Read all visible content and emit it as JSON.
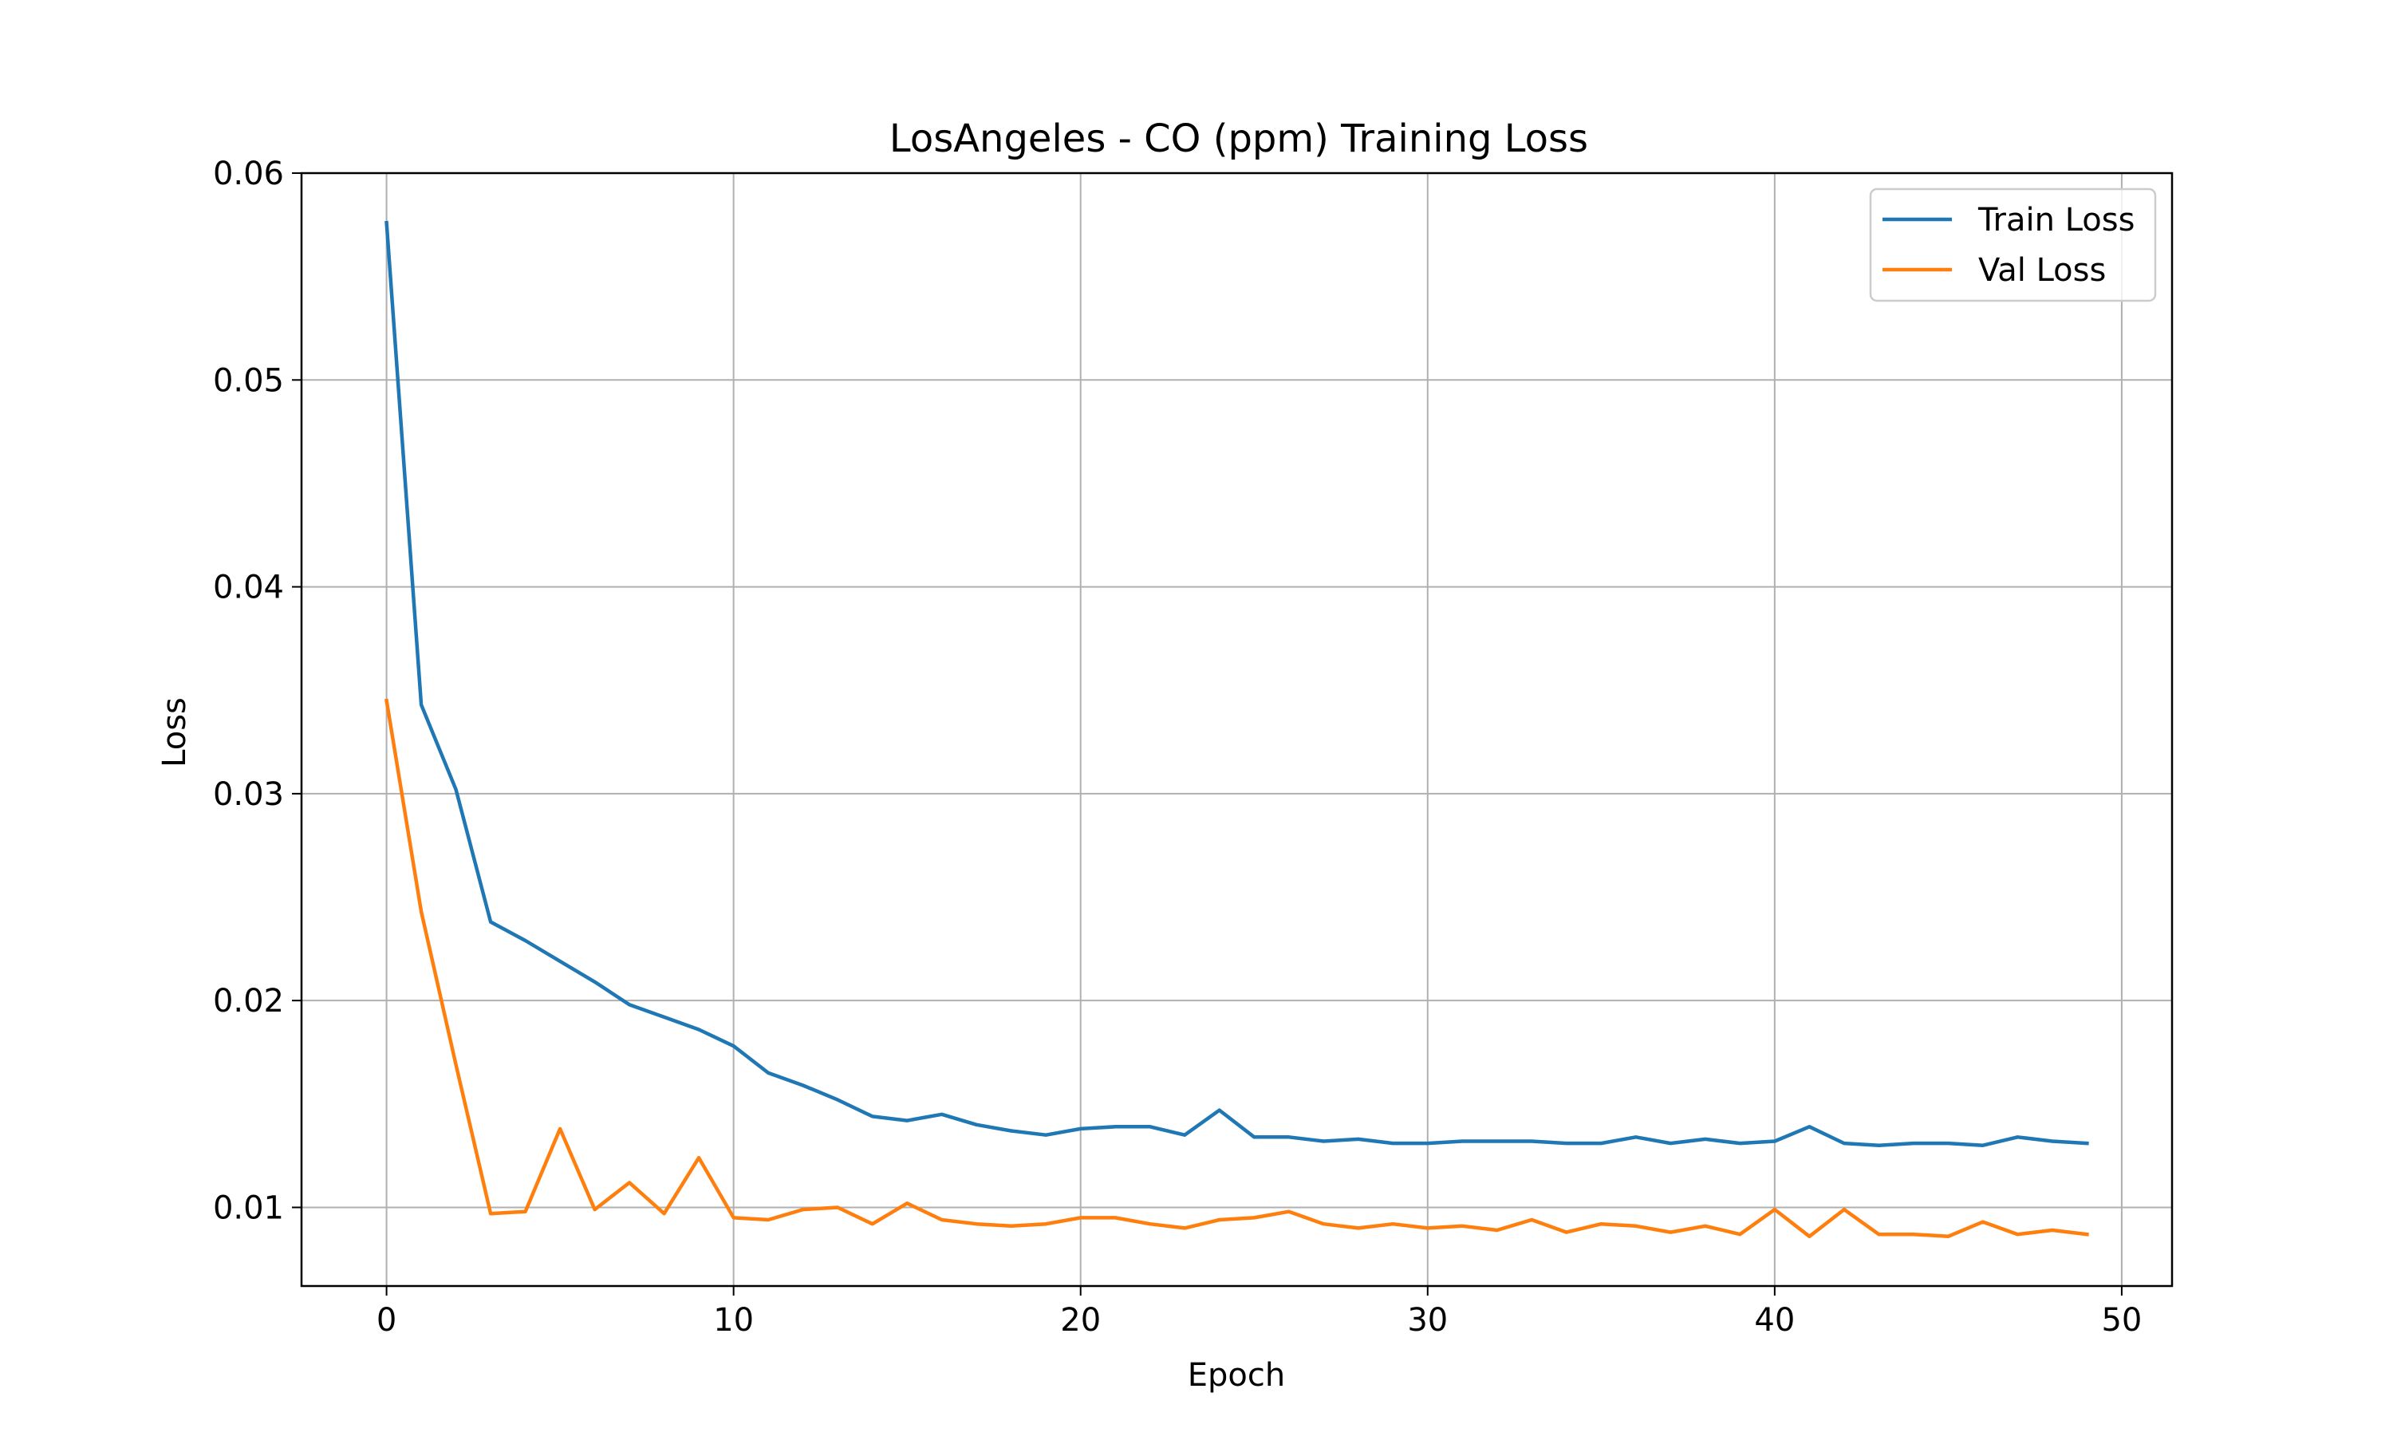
{
  "chart_data": {
    "type": "line",
    "title": "LosAngeles - CO (ppm) Training Loss",
    "xlabel": "Epoch",
    "ylabel": "Loss",
    "xlim": [
      -2.45,
      51.45
    ],
    "ylim": [
      0.0062,
      0.06
    ],
    "xticks": [
      0,
      10,
      20,
      30,
      40,
      50
    ],
    "xtick_labels": [
      "0",
      "10",
      "20",
      "30",
      "40",
      "50"
    ],
    "yticks": [
      0.01,
      0.02,
      0.03,
      0.04,
      0.05,
      0.06
    ],
    "ytick_labels": [
      "0.01",
      "0.02",
      "0.03",
      "0.04",
      "0.05",
      "0.06"
    ],
    "grid": true,
    "legend_position": "top-right",
    "x": [
      0,
      1,
      2,
      3,
      4,
      5,
      6,
      7,
      8,
      9,
      10,
      11,
      12,
      13,
      14,
      15,
      16,
      17,
      18,
      19,
      20,
      21,
      22,
      23,
      24,
      25,
      26,
      27,
      28,
      29,
      30,
      31,
      32,
      33,
      34,
      35,
      36,
      37,
      38,
      39,
      40,
      41,
      42,
      43,
      44,
      45,
      46,
      47,
      48,
      49
    ],
    "series": [
      {
        "name": "Train Loss",
        "color": "#1f77b4",
        "values": [
          0.0576,
          0.0343,
          0.0302,
          0.0238,
          0.0229,
          0.0219,
          0.0209,
          0.0198,
          0.0192,
          0.0186,
          0.0178,
          0.0165,
          0.0159,
          0.0152,
          0.0144,
          0.0142,
          0.0145,
          0.014,
          0.0137,
          0.0135,
          0.0138,
          0.0139,
          0.0139,
          0.0135,
          0.0147,
          0.0134,
          0.0134,
          0.0132,
          0.0133,
          0.0131,
          0.0131,
          0.0132,
          0.0132,
          0.0132,
          0.0131,
          0.0131,
          0.0134,
          0.0131,
          0.0133,
          0.0131,
          0.0132,
          0.0139,
          0.0131,
          0.013,
          0.0131,
          0.0131,
          0.013,
          0.0134,
          0.0132,
          0.0131
        ]
      },
      {
        "name": "Val Loss",
        "color": "#ff7f0e",
        "values": [
          0.0345,
          0.0243,
          0.0169,
          0.0097,
          0.0098,
          0.0138,
          0.0099,
          0.0112,
          0.0097,
          0.0124,
          0.0095,
          0.0094,
          0.0099,
          0.01,
          0.0092,
          0.0102,
          0.0094,
          0.0092,
          0.0091,
          0.0092,
          0.0095,
          0.0095,
          0.0092,
          0.009,
          0.0094,
          0.0095,
          0.0098,
          0.0092,
          0.009,
          0.0092,
          0.009,
          0.0091,
          0.0089,
          0.0094,
          0.0088,
          0.0092,
          0.0091,
          0.0088,
          0.0091,
          0.0087,
          0.0099,
          0.0086,
          0.0099,
          0.0087,
          0.0087,
          0.0086,
          0.0093,
          0.0087,
          0.0089,
          0.0087
        ]
      }
    ]
  }
}
